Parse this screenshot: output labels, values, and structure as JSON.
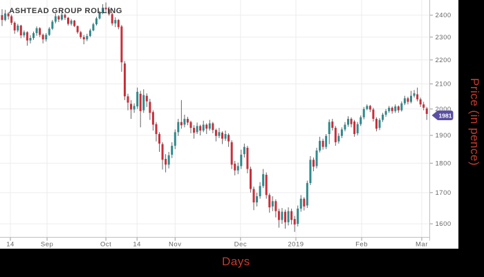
{
  "title": "ASHTEAD GROUP ROLLING",
  "last_price_tag": {
    "value": "1981",
    "fill": "#5a4fa2",
    "text_color": "#ffffff"
  },
  "colors": {
    "up_candle": "#2d8a8d",
    "down_candle": "#c92d39",
    "wick": "#636363",
    "grid": "#ececec",
    "axis_line": "#bfbfbf",
    "tick": "#999999",
    "tick_text": "#666666",
    "title_text": "#3a3a3a",
    "label_red": "#c63c30",
    "panel_bg": "#ffffff",
    "page_bg": "#000000"
  },
  "chart_data": {
    "type": "candlestick",
    "title": "ASHTEAD GROUP ROLLING",
    "xlabel": "Days",
    "ylabel": "Price (in pence)",
    "y_scale": "log",
    "ylim": [
      1560,
      2475
    ],
    "y_ticks": [
      2400,
      2300,
      2200,
      2100,
      2000,
      1900,
      1800,
      1700,
      1600
    ],
    "x_ticks": [
      {
        "label": "14",
        "i": 2.64
      },
      {
        "label": "Sep",
        "i": 14.3
      },
      {
        "label": "Oct",
        "i": 33.0
      },
      {
        "label": "14",
        "i": 42.9
      },
      {
        "label": "Nov",
        "i": 55.0
      },
      {
        "label": "Dec",
        "i": 75.8
      },
      {
        "label": "2019",
        "i": 93.4
      },
      {
        "label": "Feb",
        "i": 114.3
      },
      {
        "label": "Mar",
        "i": 133.4
      }
    ],
    "last_price": 1981,
    "candles": [
      [
        2400,
        2428,
        2350,
        2378
      ],
      [
        2378,
        2425,
        2372,
        2408
      ],
      [
        2408,
        2415,
        2380,
        2395
      ],
      [
        2395,
        2402,
        2355,
        2365
      ],
      [
        2365,
        2372,
        2315,
        2330
      ],
      [
        2330,
        2360,
        2322,
        2352
      ],
      [
        2352,
        2356,
        2295,
        2308
      ],
      [
        2308,
        2330,
        2298,
        2322
      ],
      [
        2322,
        2326,
        2262,
        2285
      ],
      [
        2285,
        2308,
        2272,
        2296
      ],
      [
        2296,
        2325,
        2288,
        2318
      ],
      [
        2318,
        2348,
        2306,
        2340
      ],
      [
        2340,
        2345,
        2300,
        2310
      ],
      [
        2310,
        2316,
        2272,
        2290
      ],
      [
        2290,
        2318,
        2280,
        2310
      ],
      [
        2310,
        2345,
        2305,
        2338
      ],
      [
        2338,
        2378,
        2332,
        2370
      ],
      [
        2370,
        2408,
        2362,
        2395
      ],
      [
        2395,
        2400,
        2368,
        2380
      ],
      [
        2380,
        2422,
        2375,
        2402
      ],
      [
        2402,
        2408,
        2378,
        2388
      ],
      [
        2388,
        2392,
        2352,
        2360
      ],
      [
        2360,
        2382,
        2352,
        2375
      ],
      [
        2375,
        2378,
        2345,
        2350
      ],
      [
        2350,
        2352,
        2315,
        2322
      ],
      [
        2322,
        2328,
        2292,
        2300
      ],
      [
        2300,
        2310,
        2268,
        2290
      ],
      [
        2290,
        2315,
        2282,
        2305
      ],
      [
        2305,
        2338,
        2300,
        2330
      ],
      [
        2330,
        2365,
        2326,
        2358
      ],
      [
        2358,
        2392,
        2352,
        2385
      ],
      [
        2385,
        2420,
        2380,
        2410
      ],
      [
        2410,
        2452,
        2405,
        2435
      ],
      [
        2435,
        2460,
        2415,
        2428
      ],
      [
        2428,
        2440,
        2398,
        2405
      ],
      [
        2405,
        2412,
        2352,
        2362
      ],
      [
        2362,
        2390,
        2345,
        2378
      ],
      [
        2378,
        2382,
        2335,
        2345
      ],
      [
        2348,
        2355,
        2150,
        2190
      ],
      [
        2185,
        2195,
        2035,
        2050
      ],
      [
        2050,
        2060,
        1995,
        2025
      ],
      [
        2020,
        2035,
        1962,
        1998
      ],
      [
        1998,
        2022,
        1985,
        2012
      ],
      [
        2010,
        2085,
        2000,
        2068
      ],
      [
        2060,
        2072,
        1930,
        1992
      ],
      [
        1995,
        2078,
        1985,
        2055
      ],
      [
        2052,
        2062,
        2008,
        2030
      ],
      [
        2028,
        2040,
        1958,
        1985
      ],
      [
        1988,
        1995,
        1918,
        1940
      ],
      [
        1942,
        1950,
        1878,
        1905
      ],
      [
        1905,
        1912,
        1840,
        1870
      ],
      [
        1868,
        1875,
        1778,
        1812
      ],
      [
        1815,
        1832,
        1768,
        1795
      ],
      [
        1795,
        1840,
        1782,
        1828
      ],
      [
        1830,
        1875,
        1818,
        1862
      ],
      [
        1862,
        1922,
        1850,
        1912
      ],
      [
        1912,
        1962,
        1898,
        1950
      ],
      [
        1950,
        2035,
        1925,
        1938
      ],
      [
        1940,
        1978,
        1930,
        1962
      ],
      [
        1962,
        1970,
        1938,
        1948
      ],
      [
        1950,
        1955,
        1908,
        1928
      ],
      [
        1928,
        1938,
        1888,
        1910
      ],
      [
        1912,
        1948,
        1905,
        1935
      ],
      [
        1935,
        1940,
        1900,
        1918
      ],
      [
        1918,
        1955,
        1912,
        1940
      ],
      [
        1940,
        1945,
        1905,
        1925
      ],
      [
        1925,
        1958,
        1918,
        1945
      ],
      [
        1945,
        1950,
        1908,
        1920
      ],
      [
        1920,
        1925,
        1878,
        1898
      ],
      [
        1898,
        1928,
        1890,
        1912
      ],
      [
        1910,
        1915,
        1868,
        1888
      ],
      [
        1888,
        1918,
        1880,
        1905
      ],
      [
        1902,
        1908,
        1858,
        1878
      ],
      [
        1875,
        1882,
        1780,
        1795
      ],
      [
        1798,
        1808,
        1758,
        1775
      ],
      [
        1775,
        1802,
        1762,
        1790
      ],
      [
        1790,
        1848,
        1780,
        1830
      ],
      [
        1832,
        1870,
        1820,
        1858
      ],
      [
        1855,
        1862,
        1765,
        1780
      ],
      [
        1780,
        1788,
        1700,
        1712
      ],
      [
        1712,
        1720,
        1643,
        1668
      ],
      [
        1668,
        1700,
        1655,
        1688
      ],
      [
        1688,
        1735,
        1680,
        1722
      ],
      [
        1722,
        1780,
        1715,
        1762
      ],
      [
        1760,
        1768,
        1680,
        1692
      ],
      [
        1692,
        1698,
        1635,
        1652
      ],
      [
        1655,
        1688,
        1640,
        1672
      ],
      [
        1672,
        1678,
        1620,
        1640
      ],
      [
        1640,
        1648,
        1588,
        1612
      ],
      [
        1612,
        1650,
        1600,
        1638
      ],
      [
        1638,
        1645,
        1585,
        1605
      ],
      [
        1605,
        1652,
        1595,
        1640
      ],
      [
        1640,
        1648,
        1598,
        1612
      ],
      [
        1615,
        1625,
        1575,
        1598
      ],
      [
        1600,
        1658,
        1592,
        1648
      ],
      [
        1648,
        1692,
        1638,
        1680
      ],
      [
        1680,
        1685,
        1642,
        1655
      ],
      [
        1658,
        1740,
        1650,
        1732
      ],
      [
        1732,
        1825,
        1725,
        1812
      ],
      [
        1812,
        1820,
        1772,
        1788
      ],
      [
        1790,
        1855,
        1782,
        1845
      ],
      [
        1845,
        1895,
        1838,
        1880
      ],
      [
        1880,
        1888,
        1848,
        1858
      ],
      [
        1858,
        1905,
        1850,
        1898
      ],
      [
        1905,
        1960,
        1868,
        1950
      ],
      [
        1952,
        1962,
        1918,
        1928
      ],
      [
        1928,
        1935,
        1862,
        1875
      ],
      [
        1878,
        1908,
        1870,
        1898
      ],
      [
        1898,
        1930,
        1890,
        1922
      ],
      [
        1922,
        1950,
        1915,
        1940
      ],
      [
        1940,
        1972,
        1932,
        1962
      ],
      [
        1962,
        1968,
        1930,
        1942
      ],
      [
        1952,
        1958,
        1895,
        1905
      ],
      [
        1908,
        1950,
        1900,
        1942
      ],
      [
        1942,
        1975,
        1935,
        1968
      ],
      [
        1968,
        2008,
        1960,
        2000
      ],
      [
        2000,
        2018,
        1995,
        2012
      ],
      [
        2012,
        2016,
        1988,
        1998
      ],
      [
        1998,
        2005,
        1952,
        1962
      ],
      [
        1962,
        1968,
        1915,
        1925
      ],
      [
        1928,
        1965,
        1920,
        1958
      ],
      [
        1958,
        1985,
        1950,
        1978
      ],
      [
        1978,
        2000,
        1970,
        1992
      ],
      [
        1992,
        2012,
        1985,
        2005
      ],
      [
        2005,
        2010,
        1982,
        1992
      ],
      [
        1992,
        2018,
        1985,
        2010
      ],
      [
        2010,
        2014,
        1985,
        1995
      ],
      [
        1995,
        2030,
        1990,
        2022
      ],
      [
        2022,
        2052,
        2015,
        2042
      ],
      [
        2042,
        2048,
        2018,
        2028
      ],
      [
        2028,
        2072,
        2022,
        2052
      ],
      [
        2052,
        2075,
        2045,
        2062
      ],
      [
        2058,
        2085,
        2030,
        2038
      ],
      [
        2038,
        2045,
        2008,
        2018
      ],
      [
        2018,
        2028,
        1995,
        2005
      ],
      [
        2002,
        2008,
        1958,
        1981
      ]
    ]
  }
}
